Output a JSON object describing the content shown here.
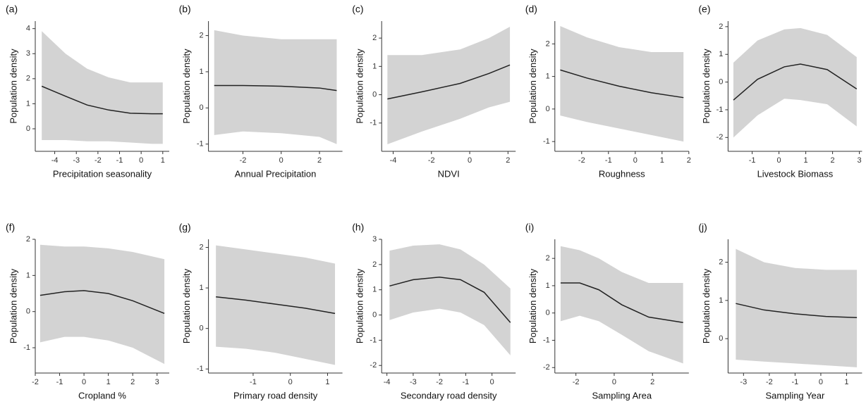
{
  "chart_data": [
    {
      "type": "line",
      "panel": "(a)",
      "xlabel": "Precipitation seasonality",
      "ylabel": "Population density",
      "x": [
        -4.6,
        -3.5,
        -2.5,
        -1.5,
        -0.5,
        0.5,
        1.0
      ],
      "values": [
        1.7,
        1.3,
        0.95,
        0.75,
        0.62,
        0.6,
        0.6
      ],
      "upper": [
        3.9,
        3.0,
        2.4,
        2.05,
        1.85,
        1.85,
        1.85
      ],
      "lower": [
        -0.45,
        -0.45,
        -0.5,
        -0.5,
        -0.55,
        -0.6,
        -0.6
      ],
      "color": "#222222",
      "band_color": "#d3d3d3",
      "xlim": [
        -4.9,
        1.3
      ],
      "ylim": [
        -0.9,
        4.3
      ],
      "xticks": [
        -4,
        -3,
        -2,
        -1,
        0,
        1
      ],
      "yticks": [
        0,
        1,
        2,
        3,
        4
      ]
    },
    {
      "type": "line",
      "panel": "(b)",
      "xlabel": "Annual Precipitation",
      "ylabel": "Population density",
      "x": [
        -3.5,
        -2,
        0,
        2,
        2.9
      ],
      "values": [
        0.62,
        0.62,
        0.6,
        0.55,
        0.48
      ],
      "upper": [
        2.15,
        2.0,
        1.9,
        1.9,
        1.9
      ],
      "lower": [
        -0.75,
        -0.65,
        -0.7,
        -0.8,
        -1.0
      ],
      "color": "#222222",
      "band_color": "#d3d3d3",
      "xlim": [
        -3.8,
        3.2
      ],
      "ylim": [
        -1.2,
        2.4
      ],
      "xticks": [
        -2,
        0,
        2
      ],
      "yticks": [
        -1,
        0,
        1,
        2
      ]
    },
    {
      "type": "line",
      "panel": "(c)",
      "xlabel": "NDVI",
      "ylabel": "Population density",
      "x": [
        -4.3,
        -2.5,
        -0.5,
        1,
        2.1
      ],
      "values": [
        -0.15,
        0.1,
        0.4,
        0.75,
        1.05
      ],
      "upper": [
        1.4,
        1.4,
        1.6,
        2.0,
        2.4
      ],
      "lower": [
        -1.75,
        -1.3,
        -0.85,
        -0.45,
        -0.25
      ],
      "color": "#222222",
      "band_color": "#d3d3d3",
      "xlim": [
        -4.6,
        2.4
      ],
      "ylim": [
        -2.0,
        2.6
      ],
      "xticks": [
        -4,
        -2,
        0,
        2
      ],
      "yticks": [
        -1,
        0,
        1,
        2
      ]
    },
    {
      "type": "line",
      "panel": "(d)",
      "xlabel": "Roughness",
      "ylabel": "Population density",
      "x": [
        -2.8,
        -1.8,
        -0.6,
        0.6,
        1.8
      ],
      "values": [
        1.2,
        0.95,
        0.7,
        0.5,
        0.35
      ],
      "upper": [
        2.55,
        2.2,
        1.9,
        1.75,
        1.75
      ],
      "lower": [
        -0.2,
        -0.4,
        -0.6,
        -0.8,
        -1.0
      ],
      "color": "#222222",
      "band_color": "#d3d3d3",
      "xlim": [
        -3.0,
        2.0
      ],
      "ylim": [
        -1.3,
        2.7
      ],
      "xticks": [
        -2,
        -1,
        0,
        1,
        2
      ],
      "yticks": [
        -1,
        0,
        1,
        2
      ]
    },
    {
      "type": "line",
      "panel": "(e)",
      "xlabel": "Livestock Biomass",
      "ylabel": "Population density",
      "x": [
        -1.7,
        -0.8,
        0.2,
        0.8,
        1.8,
        2.9
      ],
      "values": [
        -0.65,
        0.1,
        0.55,
        0.65,
        0.45,
        -0.25
      ],
      "upper": [
        0.7,
        1.5,
        1.9,
        1.95,
        1.7,
        0.9
      ],
      "lower": [
        -2.0,
        -1.2,
        -0.6,
        -0.65,
        -0.8,
        -1.6
      ],
      "color": "#222222",
      "band_color": "#d3d3d3",
      "xlim": [
        -1.9,
        3.1
      ],
      "ylim": [
        -2.5,
        2.2
      ],
      "xticks": [
        -1,
        0,
        1,
        2,
        3
      ],
      "yticks": [
        -2,
        -1,
        0,
        1,
        2
      ]
    },
    {
      "type": "line",
      "panel": "(f)",
      "xlabel": "Cropland %",
      "ylabel": "Population density",
      "x": [
        -1.8,
        -0.8,
        0,
        1,
        2,
        3.3
      ],
      "values": [
        0.45,
        0.55,
        0.58,
        0.5,
        0.3,
        -0.05
      ],
      "upper": [
        1.85,
        1.8,
        1.8,
        1.75,
        1.65,
        1.45
      ],
      "lower": [
        -0.85,
        -0.7,
        -0.7,
        -0.8,
        -1.0,
        -1.45
      ],
      "color": "#222222",
      "band_color": "#d3d3d3",
      "xlim": [
        -2.0,
        3.5
      ],
      "ylim": [
        -1.7,
        2.0
      ],
      "xticks": [
        -2,
        -1,
        0,
        1,
        2,
        3
      ],
      "yticks": [
        -1,
        0,
        1,
        2
      ]
    },
    {
      "type": "line",
      "panel": "(g)",
      "xlabel": "Primary road density",
      "ylabel": "Population density",
      "x": [
        -2,
        -1.2,
        -0.4,
        0.4,
        1.2
      ],
      "values": [
        0.78,
        0.7,
        0.6,
        0.5,
        0.37
      ],
      "upper": [
        2.05,
        1.95,
        1.85,
        1.75,
        1.6
      ],
      "lower": [
        -0.45,
        -0.5,
        -0.6,
        -0.75,
        -0.9
      ],
      "color": "#222222",
      "band_color": "#d3d3d3",
      "xlim": [
        -2.2,
        1.4
      ],
      "ylim": [
        -1.1,
        2.2
      ],
      "xticks": [
        -1,
        0,
        1
      ],
      "yticks": [
        -1,
        0,
        1,
        2
      ]
    },
    {
      "type": "line",
      "panel": "(h)",
      "xlabel": "Secondary road density",
      "ylabel": "Population density",
      "x": [
        -3.9,
        -3,
        -2,
        -1.2,
        -0.3,
        0.7
      ],
      "values": [
        1.15,
        1.4,
        1.5,
        1.4,
        0.9,
        -0.3
      ],
      "upper": [
        2.55,
        2.75,
        2.8,
        2.6,
        2.0,
        1.05
      ],
      "lower": [
        -0.2,
        0.1,
        0.25,
        0.1,
        -0.4,
        -1.6
      ],
      "color": "#222222",
      "band_color": "#d3d3d3",
      "xlim": [
        -4.2,
        0.9
      ],
      "ylim": [
        -2.3,
        3.0
      ],
      "xticks": [
        -4,
        -3,
        -2,
        -1,
        0
      ],
      "yticks": [
        -2,
        -1,
        0,
        1,
        2,
        3
      ]
    },
    {
      "type": "line",
      "panel": "(i)",
      "xlabel": "Sampling Area",
      "ylabel": "Population density",
      "x": [
        -2.8,
        -1.8,
        -0.8,
        0.4,
        1.8,
        3.6
      ],
      "values": [
        1.1,
        1.1,
        0.85,
        0.3,
        -0.15,
        -0.35
      ],
      "upper": [
        2.45,
        2.3,
        2.0,
        1.5,
        1.1,
        1.1
      ],
      "lower": [
        -0.3,
        -0.1,
        -0.3,
        -0.8,
        -1.4,
        -1.85
      ],
      "color": "#222222",
      "band_color": "#d3d3d3",
      "xlim": [
        -3.1,
        3.9
      ],
      "ylim": [
        -2.2,
        2.7
      ],
      "xticks": [
        -2,
        0,
        2
      ],
      "yticks": [
        -2,
        -1,
        0,
        1,
        2
      ]
    },
    {
      "type": "line",
      "panel": "(j)",
      "xlabel": "Sampling Year",
      "ylabel": "Population density",
      "x": [
        -3.3,
        -2.2,
        -1,
        0.2,
        1.4
      ],
      "values": [
        0.92,
        0.75,
        0.65,
        0.58,
        0.55
      ],
      "upper": [
        2.35,
        2.0,
        1.85,
        1.8,
        1.8
      ],
      "lower": [
        -0.55,
        -0.6,
        -0.65,
        -0.7,
        -0.75
      ],
      "color": "#222222",
      "band_color": "#d3d3d3",
      "xlim": [
        -3.6,
        1.6
      ],
      "ylim": [
        -0.9,
        2.6
      ],
      "xticks": [
        -3,
        -2,
        -1,
        0,
        1
      ],
      "yticks": [
        0,
        1,
        2
      ]
    }
  ]
}
